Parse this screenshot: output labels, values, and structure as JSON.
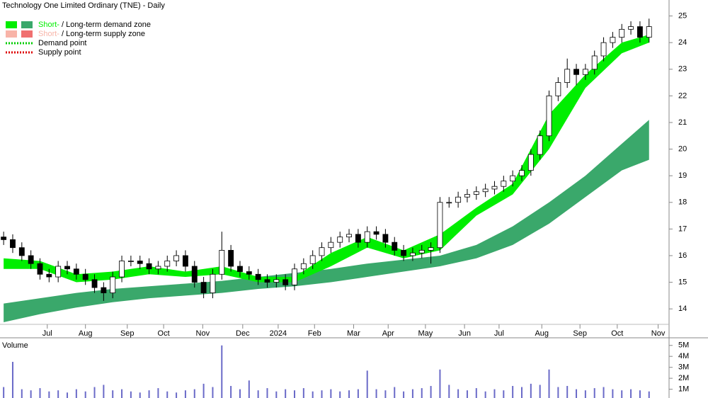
{
  "chart_data": {
    "type": "candlestick",
    "title": "Technology One Limited Ordinary (TNE) - Daily",
    "legend": [
      {
        "short": "Short-",
        "rest": "/ Long-term demand zone",
        "colors": [
          "#00ee00",
          "#3aa86b"
        ]
      },
      {
        "short": "Short-",
        "rest": "/ Long-term supply zone",
        "colors": [
          "#f8b4a8",
          "#f07070"
        ]
      },
      {
        "label": "Demand point",
        "color": "#00cc00"
      },
      {
        "label": "Supply point",
        "color": "#dd0000"
      }
    ],
    "xlim": [
      -0.4,
      73.2
    ],
    "xticks": [
      {
        "value": 4.8,
        "label": "Jul"
      },
      {
        "value": 9.0,
        "label": "Aug"
      },
      {
        "value": 13.6,
        "label": "Sep"
      },
      {
        "value": 17.6,
        "label": "Oct"
      },
      {
        "value": 21.9,
        "label": "Nov"
      },
      {
        "value": 26.3,
        "label": "Dec"
      },
      {
        "value": 30.2,
        "label": "2024"
      },
      {
        "value": 34.2,
        "label": "Feb"
      },
      {
        "value": 38.5,
        "label": "Mar"
      },
      {
        "value": 42.3,
        "label": "Apr"
      },
      {
        "value": 46.4,
        "label": "May"
      },
      {
        "value": 50.7,
        "label": "Jun"
      },
      {
        "value": 54.5,
        "label": "Jul"
      },
      {
        "value": 59.2,
        "label": "Aug"
      },
      {
        "value": 63.4,
        "label": "Sep"
      },
      {
        "value": 67.5,
        "label": "Oct"
      },
      {
        "value": 72.0,
        "label": "Nov"
      }
    ],
    "ylim": [
      13.1,
      25.6
    ],
    "yticks": [
      14,
      15,
      16,
      17,
      18,
      19,
      20,
      21,
      22,
      23,
      24,
      25
    ],
    "open": [
      16.7,
      16.6,
      16.3,
      16.0,
      15.7,
      15.3,
      15.2,
      15.6,
      15.5,
      15.3,
      15.1,
      14.8,
      14.6,
      15.2,
      15.8,
      15.8,
      15.7,
      15.5,
      15.6,
      15.8,
      16.0,
      15.6,
      15.0,
      14.6,
      15.3,
      16.2,
      15.6,
      15.4,
      15.3,
      15.1,
      15.0,
      15.1,
      14.9,
      15.5,
      15.7,
      16.0,
      16.3,
      16.5,
      16.7,
      16.8,
      16.5,
      16.9,
      16.8,
      16.5,
      16.2,
      16.0,
      16.1,
      16.2,
      16.3,
      18.0,
      18.0,
      18.2,
      18.3,
      18.4,
      18.5,
      18.6,
      18.8,
      19.0,
      19.2,
      19.8,
      20.5,
      22.0,
      22.5,
      23.0,
      22.8,
      23.0,
      23.5,
      24.0,
      24.2,
      24.5,
      24.6,
      24.2
    ],
    "high": [
      16.9,
      16.8,
      16.5,
      16.2,
      15.9,
      15.5,
      15.8,
      15.8,
      15.7,
      15.5,
      15.3,
      15.0,
      15.4,
      16.0,
      16.0,
      16.0,
      15.9,
      15.8,
      16.0,
      16.2,
      16.2,
      15.8,
      15.2,
      15.5,
      16.9,
      16.4,
      15.8,
      15.6,
      15.5,
      15.3,
      15.3,
      15.3,
      15.7,
      15.9,
      16.2,
      16.5,
      16.7,
      16.9,
      17.0,
      17.0,
      17.1,
      17.1,
      17.0,
      16.7,
      16.4,
      16.3,
      16.4,
      16.5,
      18.2,
      18.2,
      18.4,
      18.5,
      18.6,
      18.7,
      18.8,
      19.0,
      19.2,
      19.4,
      20.0,
      20.7,
      22.2,
      22.7,
      23.4,
      23.2,
      23.2,
      23.7,
      24.2,
      24.4,
      24.7,
      24.8,
      24.8,
      24.9
    ],
    "low": [
      16.4,
      16.1,
      15.8,
      15.5,
      15.1,
      15.0,
      15.0,
      15.3,
      15.1,
      14.9,
      14.6,
      14.3,
      14.4,
      15.0,
      15.6,
      15.5,
      15.3,
      15.3,
      15.4,
      15.6,
      15.4,
      14.8,
      14.4,
      14.4,
      15.1,
      15.4,
      15.2,
      15.1,
      14.9,
      14.8,
      14.8,
      14.7,
      14.7,
      15.3,
      15.5,
      15.8,
      16.1,
      16.3,
      16.5,
      16.3,
      16.3,
      16.6,
      16.3,
      16.0,
      15.8,
      15.8,
      15.9,
      15.7,
      16.1,
      17.8,
      17.8,
      18.0,
      18.1,
      18.2,
      18.3,
      18.4,
      18.6,
      18.8,
      19.0,
      19.6,
      20.3,
      21.8,
      22.3,
      22.4,
      22.6,
      22.8,
      23.3,
      23.8,
      24.0,
      24.3,
      24.0,
      24.0
    ],
    "close": [
      16.6,
      16.3,
      16.0,
      15.7,
      15.3,
      15.2,
      15.6,
      15.5,
      15.3,
      15.1,
      14.8,
      14.6,
      15.2,
      15.8,
      15.8,
      15.7,
      15.5,
      15.6,
      15.8,
      16.0,
      15.6,
      15.0,
      14.6,
      15.3,
      16.2,
      15.6,
      15.4,
      15.3,
      15.1,
      15.0,
      15.1,
      14.9,
      15.5,
      15.7,
      16.0,
      16.3,
      16.5,
      16.7,
      16.8,
      16.5,
      16.9,
      16.8,
      16.5,
      16.2,
      16.0,
      16.1,
      16.2,
      16.3,
      18.0,
      18.0,
      18.2,
      18.3,
      18.4,
      18.5,
      18.6,
      18.8,
      19.0,
      19.2,
      19.8,
      20.5,
      22.0,
      22.5,
      23.0,
      22.8,
      23.0,
      23.5,
      24.0,
      24.2,
      24.5,
      24.6,
      24.2,
      24.6
    ],
    "zones": {
      "x": [
        0,
        4,
        8,
        12,
        16,
        20,
        24,
        28,
        32,
        36,
        40,
        44,
        48,
        52,
        56,
        60,
        64,
        68,
        71
      ],
      "long_upper": [
        14.2,
        14.4,
        14.6,
        14.75,
        14.85,
        14.95,
        15.05,
        15.2,
        15.35,
        15.5,
        15.7,
        15.85,
        16.0,
        16.4,
        17.1,
        18.0,
        19.0,
        20.2,
        21.1
      ],
      "long_lower": [
        13.5,
        13.8,
        14.05,
        14.25,
        14.4,
        14.5,
        14.6,
        14.75,
        14.85,
        15.0,
        15.2,
        15.4,
        15.6,
        15.9,
        16.4,
        17.2,
        18.2,
        19.2,
        19.6
      ],
      "short_upper": [
        15.9,
        15.8,
        15.3,
        15.4,
        15.6,
        15.4,
        15.6,
        15.2,
        15.2,
        16.1,
        16.7,
        16.2,
        16.8,
        17.8,
        18.7,
        21.3,
        22.8,
        24.0,
        24.3
      ],
      "short_lower": [
        15.5,
        15.5,
        15.0,
        15.1,
        15.3,
        15.2,
        15.3,
        15.0,
        15.0,
        15.6,
        16.3,
        15.9,
        16.2,
        17.5,
        18.3,
        20.0,
        22.3,
        23.6,
        24.0
      ]
    },
    "volume": {
      "label": "Volume",
      "color": "#6a6ac8",
      "values": [
        1.2,
        3.5,
        1.0,
        0.9,
        1.1,
        0.8,
        0.9,
        0.7,
        1.0,
        0.8,
        1.2,
        1.4,
        0.9,
        1.0,
        0.8,
        0.7,
        0.9,
        1.1,
        0.8,
        0.7,
        0.9,
        1.0,
        1.5,
        1.2,
        5.0,
        1.3,
        1.0,
        1.8,
        0.9,
        1.1,
        0.8,
        1.0,
        0.9,
        1.1,
        0.8,
        0.9,
        1.0,
        0.8,
        0.9,
        1.0,
        2.7,
        1.0,
        0.9,
        1.2,
        0.8,
        1.0,
        1.1,
        1.3,
        2.8,
        1.4,
        1.0,
        0.9,
        1.1,
        0.8,
        1.0,
        0.9,
        1.3,
        1.2,
        1.5,
        1.4,
        2.8,
        1.2,
        1.3,
        1.0,
        0.9,
        1.1,
        1.2,
        1.0,
        0.9,
        1.0,
        0.9,
        0.8
      ],
      "ylim": [
        0.2,
        5.5
      ],
      "yticks": [
        {
          "value": 1,
          "label": "1M"
        },
        {
          "value": 2,
          "label": "2M"
        },
        {
          "value": 3,
          "label": "3M"
        },
        {
          "value": 4,
          "label": "4M"
        },
        {
          "value": 5,
          "label": "5M"
        }
      ]
    }
  }
}
